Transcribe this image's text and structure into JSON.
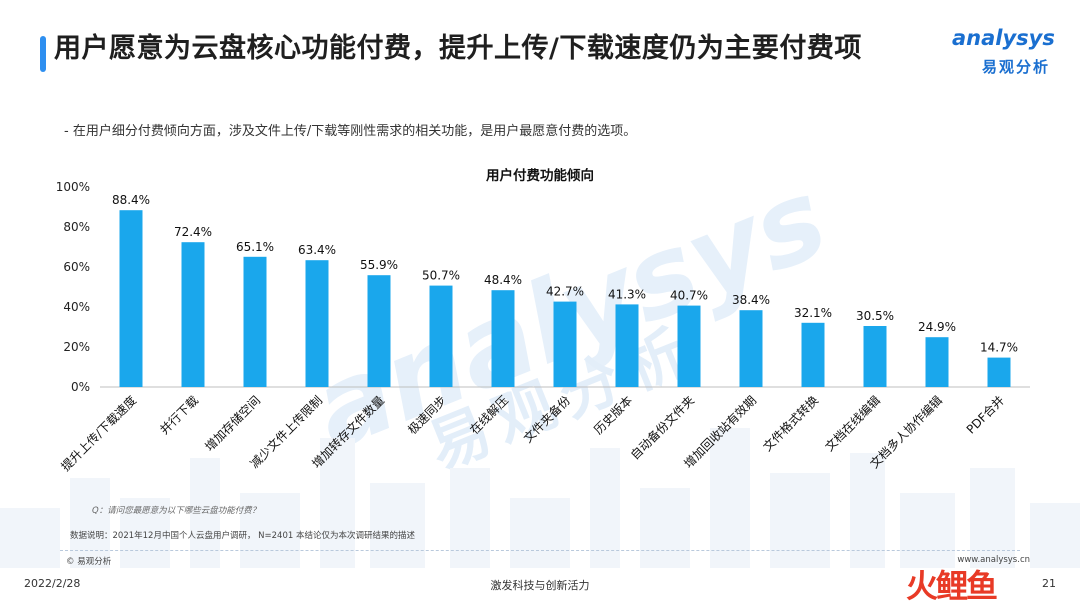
{
  "header": {
    "title": "用户愿意为云盘核心功能付费，提升上传/下载速度仍为主要付费项",
    "bullet": "-  在用户细分付费倾向方面，涉及文件上传/下载等刚性需求的相关功能，是用户最愿意付费的选项。"
  },
  "logo": {
    "en": "analysys",
    "cn": "易观分析"
  },
  "watermark": {
    "en": "analysys",
    "cn": "易观分析"
  },
  "stamp_text": "火鲤鱼",
  "colors": {
    "bar": "#1aa7ec",
    "title_accent": "#2e8ff0",
    "brand": "#1a6fd0"
  },
  "chart_data": {
    "type": "bar",
    "title": "用户付费功能倾向",
    "categories": [
      "提升上传/下载速度",
      "并行下载",
      "增加存储空间",
      "减少文件上传限制",
      "增加转存文件数量",
      "极速同步",
      "在线解压",
      "文件夹备份",
      "历史版本",
      "自动备份文件夹",
      "增加回收站有效期",
      "文件格式转换",
      "文档在线编辑",
      "文档多人协作编辑",
      "PDF合并"
    ],
    "values": [
      88.4,
      72.4,
      65.1,
      63.4,
      55.9,
      50.7,
      48.4,
      42.7,
      41.3,
      40.7,
      38.4,
      32.1,
      30.5,
      24.9,
      14.7
    ],
    "value_labels": [
      "88.4%",
      "72.4%",
      "65.1%",
      "63.4%",
      "55.9%",
      "50.7%",
      "48.4%",
      "42.7%",
      "41.3%",
      "40.7%",
      "38.4%",
      "32.1%",
      "30.5%",
      "24.9%",
      "14.7%"
    ],
    "y_ticks": [
      "0%",
      "20%",
      "40%",
      "60%",
      "80%",
      "100%"
    ],
    "ylim": [
      0,
      100
    ],
    "grid": false,
    "legend": "none"
  },
  "footer": {
    "question": "Q：请问您最愿意为以下哪些云盘功能付费？",
    "data_note": "数据说明：2021年12月中国个人云盘用户调研， N=2401  本结论仅为本次调研结果的描述",
    "copyright": "© 易观分析",
    "site": "www.analysys.cn",
    "date": "2022/2/28",
    "slogan": "激发科技与创新活力",
    "page": "21"
  }
}
